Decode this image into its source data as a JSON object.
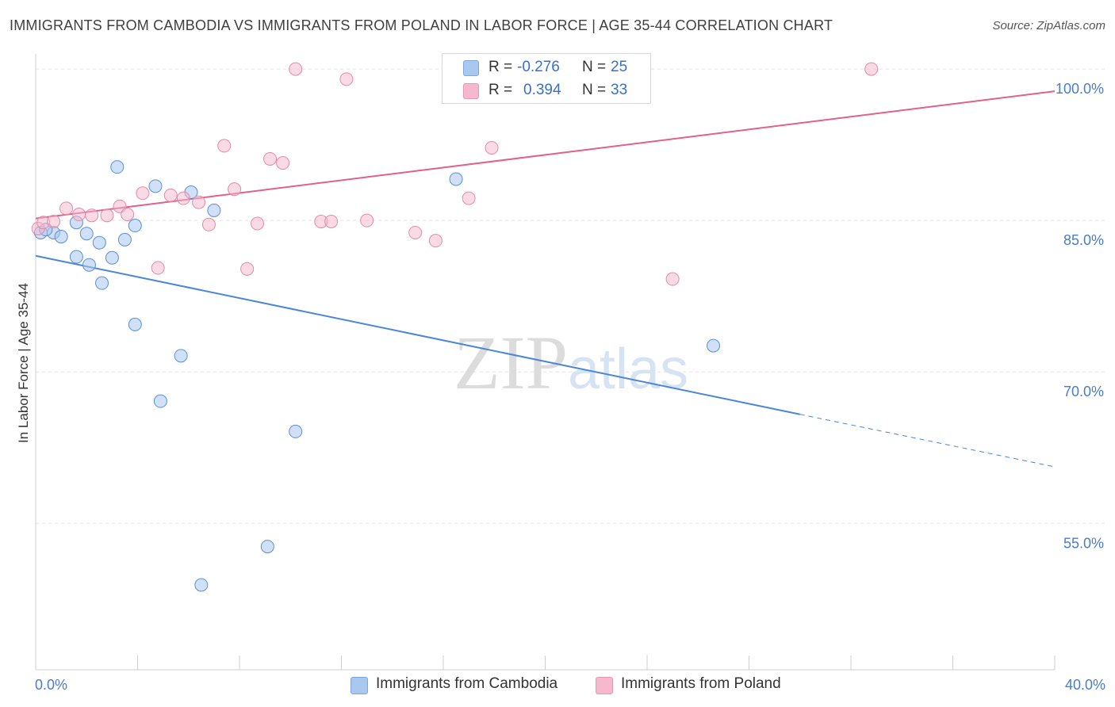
{
  "title": "IMMIGRANTS FROM CAMBODIA VS IMMIGRANTS FROM POLAND IN LABOR FORCE | AGE 35-44 CORRELATION CHART",
  "source": "Source: ZipAtlas.com",
  "watermark": "ZIPatlas",
  "legend_top": {
    "rows": [
      {
        "r_label": "R =",
        "r_value": "-0.276",
        "n_label": "N =",
        "n_value": "25",
        "color": "#a9c8f0"
      },
      {
        "r_label": "R =",
        "r_value": "0.394",
        "n_label": "N =",
        "n_value": "33",
        "color": "#f5b8cc"
      }
    ]
  },
  "legend_bottom": {
    "items": [
      {
        "label": "Immigrants from Cambodia",
        "color": "#a9c8f0"
      },
      {
        "label": "Immigrants from Poland",
        "color": "#f5b8cc"
      }
    ]
  },
  "chart_data": {
    "type": "scatter",
    "title": "IMMIGRANTS FROM CAMBODIA VS IMMIGRANTS FROM POLAND IN LABOR FORCE | AGE 35-44 CORRELATION CHART",
    "xlabel": "",
    "ylabel": "In Labor Force | Age 35-44",
    "xlim": [
      0,
      40
    ],
    "ylim": [
      40.5,
      101.5
    ],
    "x_tick_labels": [
      "0.0%",
      "40.0%"
    ],
    "y_ticks": [
      55,
      70,
      85,
      100
    ],
    "y_tick_labels": [
      "55.0%",
      "70.0%",
      "85.0%",
      "100.0%"
    ],
    "grid": true,
    "legend_position": "top-center",
    "colors": {
      "cambodia": "#4a86d8",
      "poland": "#e0608e"
    },
    "series": [
      {
        "name": "Immigrants from Cambodia",
        "points": [
          [
            0.2,
            83.8
          ],
          [
            0.7,
            83.8
          ],
          [
            1.0,
            83.4
          ],
          [
            1.6,
            81.4
          ],
          [
            1.6,
            84.8
          ],
          [
            2.0,
            83.7
          ],
          [
            2.1,
            80.6
          ],
          [
            2.5,
            82.8
          ],
          [
            2.6,
            78.8
          ],
          [
            3.0,
            81.3
          ],
          [
            3.2,
            90.3
          ],
          [
            3.5,
            83.1
          ],
          [
            3.9,
            84.5
          ],
          [
            3.9,
            74.7
          ],
          [
            4.7,
            88.4
          ],
          [
            4.9,
            67.1
          ],
          [
            5.7,
            71.6
          ],
          [
            6.1,
            87.8
          ],
          [
            6.5,
            48.9
          ],
          [
            7.0,
            86.0
          ],
          [
            9.1,
            52.7
          ],
          [
            10.2,
            64.1
          ],
          [
            16.5,
            89.1
          ],
          [
            26.6,
            72.6
          ],
          [
            0.4,
            84.1
          ]
        ],
        "trend": {
          "x0": 0,
          "y0": 81.5,
          "x1": 30.0,
          "y1": 65.8,
          "dash_x1": 40.0,
          "dash_y1": 60.6
        }
      },
      {
        "name": "Immigrants from Poland",
        "points": [
          [
            0.1,
            84.2
          ],
          [
            0.3,
            84.8
          ],
          [
            0.7,
            84.9
          ],
          [
            1.2,
            86.2
          ],
          [
            1.7,
            85.6
          ],
          [
            2.2,
            85.5
          ],
          [
            2.8,
            85.5
          ],
          [
            3.3,
            86.4
          ],
          [
            3.6,
            85.6
          ],
          [
            4.2,
            87.7
          ],
          [
            4.8,
            80.3
          ],
          [
            5.3,
            87.5
          ],
          [
            5.8,
            87.2
          ],
          [
            6.4,
            86.8
          ],
          [
            6.8,
            84.6
          ],
          [
            7.4,
            92.4
          ],
          [
            7.8,
            88.1
          ],
          [
            8.3,
            80.2
          ],
          [
            8.7,
            84.7
          ],
          [
            9.2,
            91.1
          ],
          [
            9.7,
            90.7
          ],
          [
            10.2,
            100.0
          ],
          [
            11.2,
            84.9
          ],
          [
            11.6,
            84.9
          ],
          [
            12.2,
            99.0
          ],
          [
            13.0,
            85.0
          ],
          [
            14.9,
            83.8
          ],
          [
            15.7,
            83.0
          ],
          [
            17.0,
            87.2
          ],
          [
            17.9,
            92.2
          ],
          [
            18.2,
            100.0
          ],
          [
            25.0,
            79.2
          ],
          [
            32.8,
            100.0
          ]
        ],
        "trend": {
          "x0": 0,
          "y0": 85.2,
          "x1": 40.0,
          "y1": 97.8
        }
      }
    ]
  }
}
